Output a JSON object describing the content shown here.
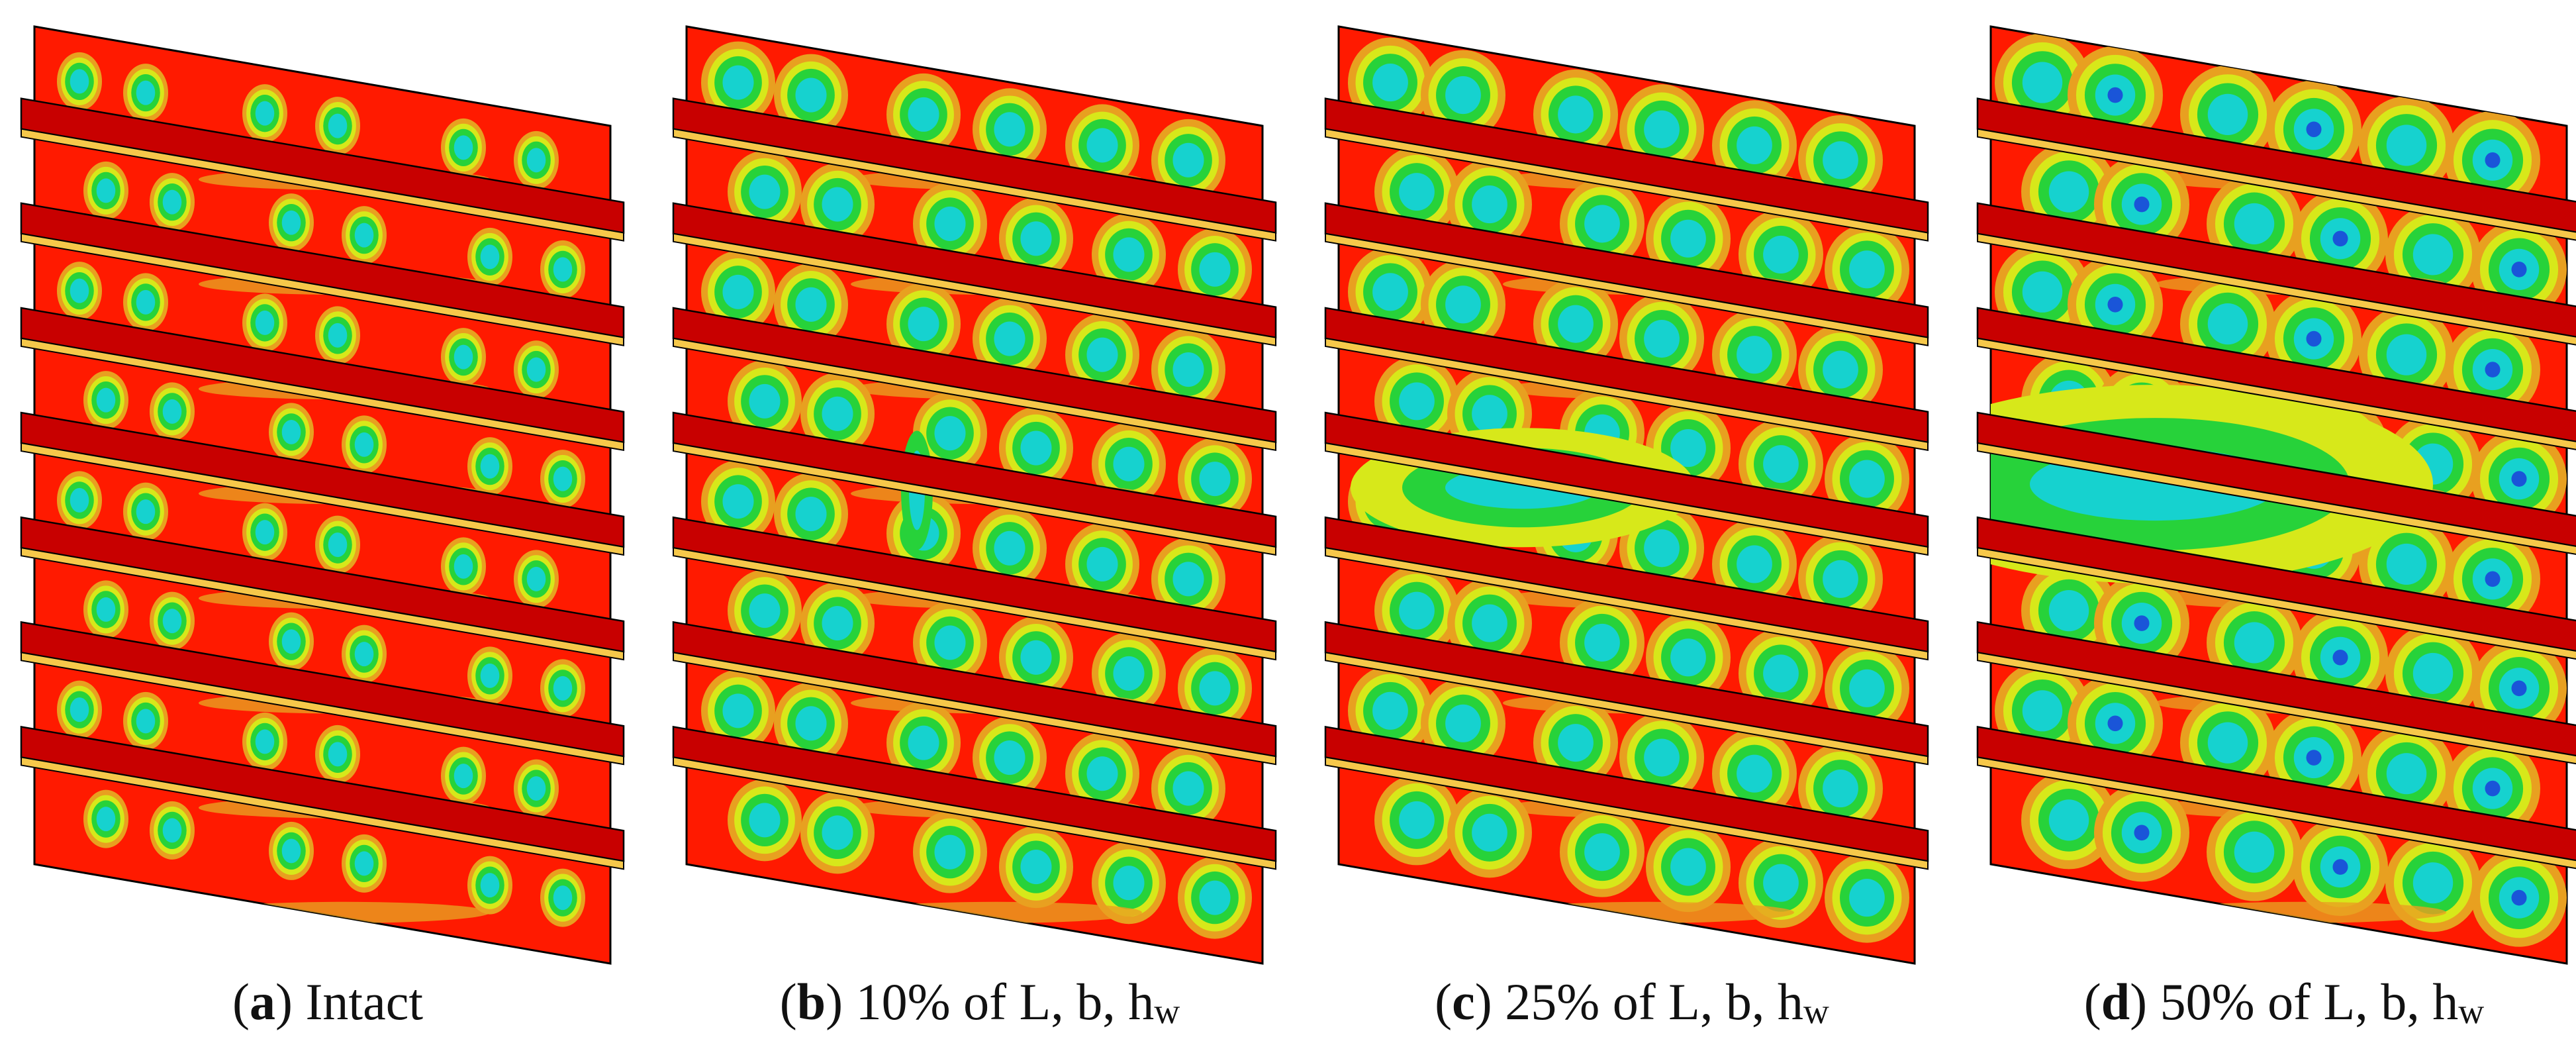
{
  "panels": [
    {
      "letter": "a",
      "label": "Intact",
      "subscript": "",
      "damage_level": 0
    },
    {
      "letter": "b",
      "label": "10% of L, b, h",
      "subscript": "w",
      "damage_level": 0.1
    },
    {
      "letter": "c",
      "label": "25% of L, b, h",
      "subscript": "w",
      "damage_level": 0.25
    },
    {
      "letter": "d",
      "label": "50% of L, b, h",
      "subscript": "w",
      "damage_level": 0.5
    }
  ],
  "colors": {
    "plate_base": "#ff1a00",
    "stiffener_top": "#c80000",
    "stiffener_flange": "#f6c84a",
    "contour_orange": "#e8a020",
    "contour_yellow": "#d7e81a",
    "contour_green": "#27d23a",
    "contour_cyan": "#16d2cf",
    "contour_blue": "#1a55d8",
    "outline": "#000000"
  }
}
